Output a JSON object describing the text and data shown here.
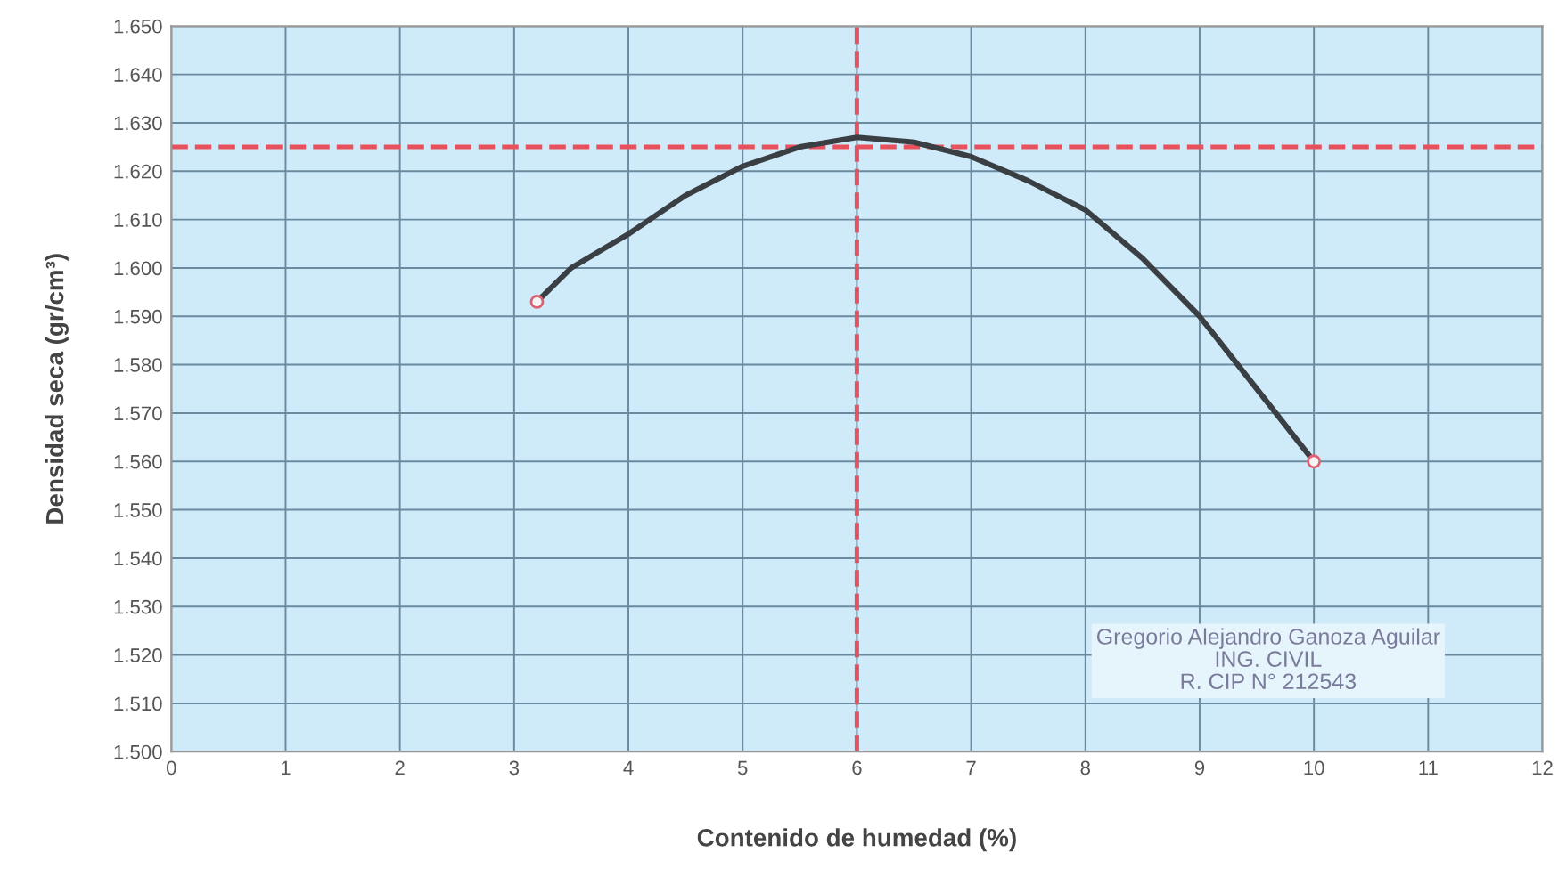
{
  "chart_data": {
    "type": "line",
    "xlabel": "Contenido de humedad (%)",
    "ylabel": "Densidad seca (gr/cm³)",
    "series": [
      {
        "color": "#3a3f44",
        "marker": "none",
        "x": [
          3.2,
          3.5,
          4,
          4.5,
          5,
          5.5,
          6,
          6.5,
          7,
          7.5,
          8,
          8.5,
          9,
          9.5,
          10
        ],
        "values": [
          1.593,
          1.6,
          1.607,
          1.615,
          1.621,
          1.625,
          1.627,
          1.626,
          1.623,
          1.618,
          1.612,
          1.602,
          1.59,
          1.575,
          1.56
        ]
      },
      {
        "type": "scatter",
        "color": "#e06070",
        "marker": "circle",
        "x": [
          3.2,
          10
        ],
        "values": [
          1.593,
          1.56
        ]
      }
    ],
    "xlim": [
      0,
      12
    ],
    "xticks": [
      0,
      1,
      2,
      3,
      4,
      5,
      6,
      7,
      8,
      9,
      10,
      11,
      12
    ],
    "ylim": [
      1.5,
      1.65
    ],
    "yticks": [
      {
        "value": 1.5,
        "label": "1.500"
      },
      {
        "value": 1.51,
        "label": "1.510"
      },
      {
        "value": 1.52,
        "label": "1.520"
      },
      {
        "value": 1.53,
        "label": "1.530"
      },
      {
        "value": 1.54,
        "label": "1.540"
      },
      {
        "value": 1.55,
        "label": "1.550"
      },
      {
        "value": 1.56,
        "label": "1.560"
      },
      {
        "value": 1.57,
        "label": "1.570"
      },
      {
        "value": 1.58,
        "label": "1.580"
      },
      {
        "value": 1.59,
        "label": "1.590"
      },
      {
        "value": 1.6,
        "label": "1.600"
      },
      {
        "value": 1.61,
        "label": "1.610"
      },
      {
        "value": 1.62,
        "label": "1.620"
      },
      {
        "value": 1.63,
        "label": "1.630"
      },
      {
        "value": 1.64,
        "label": "1.640"
      },
      {
        "value": 1.65,
        "label": "1.650"
      }
    ],
    "ref_lines": [
      {
        "axis": "y",
        "value": 1.625,
        "color": "#e8505b",
        "line_style": "dashed"
      },
      {
        "axis": "x",
        "value": 6,
        "color": "#e8505b",
        "line_style": "dashed"
      }
    ],
    "grid": true,
    "annotations": [
      "Gregorio Alejandro Ganoza Aguilar\nING. CIVIL\nR. CIP N° 212543"
    ]
  }
}
